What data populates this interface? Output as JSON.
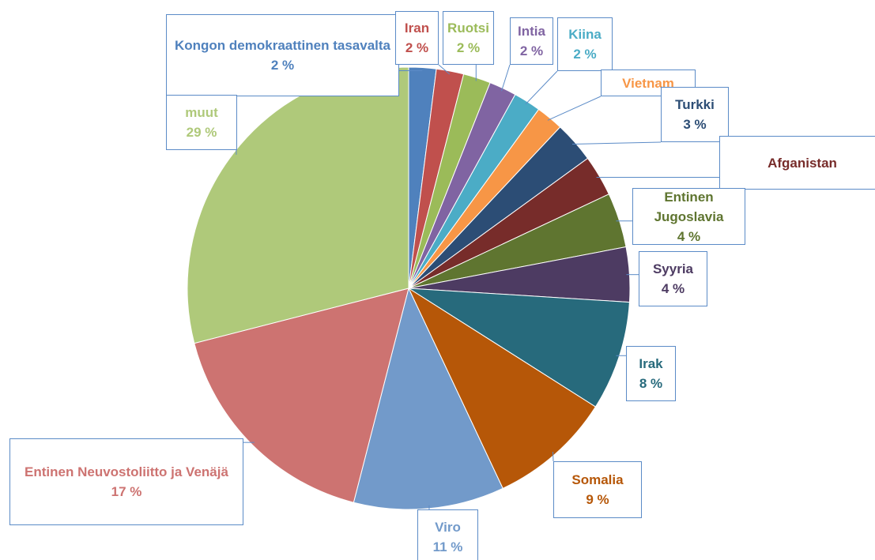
{
  "chart_data": {
    "type": "pie",
    "categories": [
      "Kongon demokraattinen tasavalta",
      "Iran",
      "Ruotsi",
      "Intia",
      "Kiina",
      "Vietnam",
      "Turkki",
      "Afganistan",
      "Entinen Jugoslavia",
      "Syyria",
      "Irak",
      "Somalia",
      "Viro",
      "Entinen Neuvostoliitto ja Venäjä",
      "muut"
    ],
    "values": [
      2,
      2,
      2,
      2,
      2,
      2,
      3,
      3,
      4,
      4,
      8,
      9,
      11,
      17,
      29
    ],
    "value_labels": [
      "2 %",
      "2 %",
      "2 %",
      "2 %",
      "2 %",
      null,
      "3 %",
      null,
      "4 %",
      "4 %",
      "8 %",
      "9 %",
      "11 %",
      "17 %",
      "29 %"
    ],
    "colors": [
      "#4f81bd",
      "#c0504d",
      "#9bbb59",
      "#8064a2",
      "#4bacc6",
      "#f79646",
      "#2c4d75",
      "#772c2a",
      "#5f7530",
      "#4d3b62",
      "#276a7c",
      "#b65708",
      "#729aca",
      "#cd7371",
      "#afc97a"
    ]
  }
}
